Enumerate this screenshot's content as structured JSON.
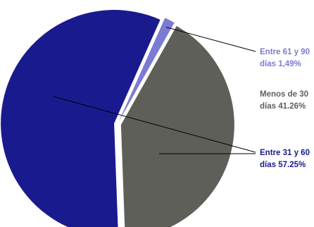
{
  "chart_data": {
    "type": "pie",
    "slices": [
      {
        "label": "Entre 61 y 90 días",
        "value": 1.49,
        "display": "1,49%",
        "color": "#7b7bd4",
        "label_color": "#7b7bd4",
        "label_lines": [
          "Entre 61 y 90",
          "días 1,49%"
        ]
      },
      {
        "label": "Menos de 30 días",
        "value": 41.26,
        "display": "41.26%",
        "color": "#5f5f5a",
        "label_color": "#5f5f5a",
        "label_lines": [
          "Menos de 30",
          "días 41.26%"
        ]
      },
      {
        "label": "Entre 31 y 60 días",
        "value": 57.25,
        "display": "57.25%",
        "color": "#1a1a8f",
        "label_color": "#1a1a8f",
        "label_lines": [
          "Entre 31 y 60",
          "días 57.25%"
        ]
      }
    ],
    "legend": "right",
    "leader_line_color": "#000000"
  }
}
